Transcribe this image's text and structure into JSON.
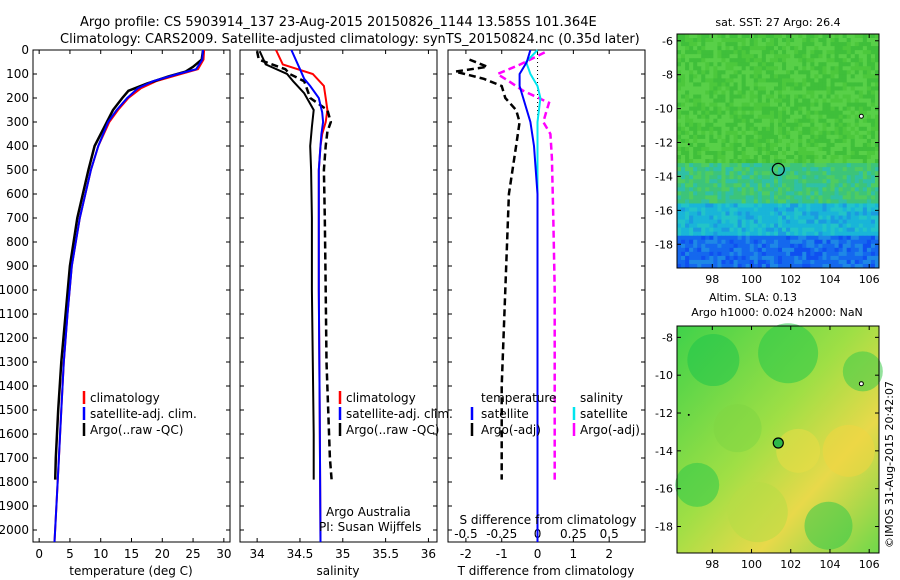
{
  "header": {
    "line1": "Argo profile: CS 5903914_137 23-Aug-2015 20150826_1144 13.585S 101.364E",
    "line2": "Climatology: CARS2009. Satellite-adjusted climatology: synTS_20150824.nc (0.35d later)"
  },
  "colors": {
    "climatology": "#ff0000",
    "satellite": "#0000ff",
    "argo": "#000000",
    "cyan": "#00e5ee",
    "magenta": "#ff00ff"
  },
  "chart_data": [
    {
      "type": "line",
      "id": "temperature",
      "xlabel": "temperature (deg C)",
      "xlim": [
        -1,
        31
      ],
      "xticks": [
        0,
        5,
        10,
        15,
        20,
        25,
        30
      ],
      "ylim": [
        0,
        2050
      ],
      "yticks": [
        0,
        100,
        200,
        300,
        400,
        500,
        600,
        700,
        800,
        900,
        1000,
        1100,
        1200,
        1300,
        1400,
        1500,
        1600,
        1700,
        1800,
        1900,
        2000
      ],
      "legend": [
        "climatology",
        "satellite-adj. clim.",
        "Argo(..raw -QC)"
      ],
      "series": [
        {
          "name": "climatology",
          "depth": [
            0,
            40,
            80,
            100,
            130,
            160,
            200,
            250,
            300,
            400,
            500,
            700,
            900,
            1100,
            1300,
            1500,
            1700,
            1900,
            2050
          ],
          "values": [
            26.8,
            26.7,
            25.8,
            23,
            19,
            16.5,
            14.5,
            12.8,
            11.4,
            9.6,
            8.4,
            6.6,
            5.3,
            4.6,
            4,
            3.6,
            3.2,
            2.8,
            2.5
          ]
        },
        {
          "name": "satellite-adj. clim.",
          "depth": [
            0,
            40,
            80,
            100,
            130,
            160,
            200,
            250,
            300,
            400,
            500,
            700,
            900,
            1100,
            1300,
            1500,
            1700,
            1900,
            2050
          ],
          "values": [
            26.6,
            26.5,
            25.5,
            22.5,
            18.5,
            16,
            14.3,
            12.6,
            11.2,
            9.6,
            8.4,
            6.6,
            5.3,
            4.6,
            4,
            3.6,
            3.2,
            2.8,
            2.5
          ]
        },
        {
          "name": "Argo(..raw -QC)",
          "depth": [
            5,
            40,
            70,
            90,
            110,
            140,
            170,
            200,
            250,
            300,
            400,
            500,
            700,
            900,
            1100,
            1300,
            1500,
            1700,
            1790
          ],
          "values": [
            26.6,
            26.4,
            25,
            23.8,
            21,
            17.5,
            14.5,
            13.5,
            12,
            11,
            9,
            8,
            6.2,
            5,
            4.3,
            3.6,
            3.1,
            2.7,
            2.6
          ]
        }
      ]
    },
    {
      "type": "line",
      "id": "salinity",
      "xlabel": "salinity",
      "xlim": [
        33.8,
        36.1
      ],
      "xticks": [
        34,
        34.5,
        35,
        35.5,
        36
      ],
      "xticklabels": [
        "34",
        "34.5",
        "35",
        "35.5",
        "36"
      ],
      "ylim": [
        0,
        2050
      ],
      "legend": [
        "climatology",
        "satellite-adj. clim.",
        "Argo(..raw -QC)"
      ],
      "annotation": [
        "Argo Australia",
        "PI: Susan Wijffels"
      ],
      "series": [
        {
          "name": "climatology",
          "depth": [
            0,
            60,
            100,
            150,
            200,
            250,
            300,
            350,
            400,
            500,
            700,
            1000,
            1500,
            2050
          ],
          "values": [
            34.22,
            34.3,
            34.65,
            34.78,
            34.8,
            34.82,
            34.8,
            34.76,
            34.74,
            34.72,
            34.72,
            34.72,
            34.73,
            34.74
          ]
        },
        {
          "name": "satellite-adj. clim.",
          "depth": [
            0,
            80,
            120,
            150,
            200,
            260,
            300,
            350,
            400,
            500,
            700,
            1000,
            1500,
            2050
          ],
          "values": [
            34.4,
            34.5,
            34.55,
            34.62,
            34.72,
            34.76,
            34.77,
            34.75,
            34.74,
            34.72,
            34.72,
            34.72,
            34.73,
            34.74
          ]
        },
        {
          "name": "Argo(..raw -QC)",
          "depth": [
            5,
            40,
            80,
            100,
            130,
            200,
            250,
            300,
            340,
            400,
            500,
            700,
            1000,
            1300,
            1500,
            1700,
            1790
          ],
          "values": [
            34.0,
            34.02,
            34.33,
            34.38,
            34.55,
            34.62,
            34.82,
            34.86,
            34.82,
            34.8,
            34.78,
            34.79,
            34.8,
            34.81,
            34.83,
            34.85,
            34.87
          ]
        },
        {
          "name": "Argo(..raw -QC) 2",
          "depth": [
            5,
            60,
            100,
            130,
            180,
            250,
            320,
            400,
            500,
            700,
            1000,
            1300,
            1600,
            1790
          ],
          "values": [
            34.03,
            34.1,
            34.35,
            34.42,
            34.55,
            34.66,
            34.64,
            34.62,
            34.63,
            34.64,
            34.64,
            34.65,
            34.66,
            34.66
          ]
        }
      ]
    },
    {
      "type": "line",
      "id": "difference",
      "xlabel": "T difference from climatology",
      "xlim": [
        -2.5,
        3
      ],
      "xticks": [
        -2,
        -1,
        0,
        1,
        2
      ],
      "toplabel": "S difference from climatology",
      "topticks": [
        -0.5,
        -0.25,
        0,
        0.25,
        0.5
      ],
      "topticklabels": [
        "-0.5",
        "-0.25",
        "0",
        "0.25",
        "0.5"
      ],
      "ylim": [
        0,
        2050
      ],
      "legend_temperature": [
        "temperature",
        "satellite",
        "Argo(-adj)"
      ],
      "legend_salinity": [
        "salinity",
        "satellite",
        "Argo(-adj)"
      ],
      "series": [
        {
          "name": "T satellite",
          "depth": [
            0,
            50,
            100,
            150,
            200,
            300,
            400,
            600,
            1000,
            1500,
            2050
          ],
          "values": [
            -0.2,
            -0.3,
            -0.5,
            -0.5,
            -0.4,
            -0.2,
            -0.1,
            0,
            0,
            0,
            0
          ]
        },
        {
          "name": "T Argo(-adj)",
          "depth": [
            40,
            70,
            90,
            120,
            150,
            200,
            250,
            300,
            400,
            600,
            1000,
            1400,
            1790
          ],
          "values": [
            -1.9,
            -1.4,
            -2.3,
            -1.5,
            -1.0,
            -0.9,
            -0.6,
            -0.5,
            -0.6,
            -0.8,
            -0.9,
            -1.0,
            -1.0
          ]
        },
        {
          "name": "S satellite",
          "depth": [
            0,
            50,
            100,
            150,
            200,
            300,
            400,
            600,
            1000,
            1500,
            2050
          ],
          "values": [
            0,
            -0.08,
            -0.05,
            0,
            0.02,
            0,
            0,
            0,
            0,
            0,
            0
          ]
        },
        {
          "name": "S Argo(-adj)",
          "depth": [
            10,
            60,
            100,
            130,
            170,
            220,
            260,
            300,
            350,
            450,
            700,
            1000,
            1400,
            1790
          ],
          "values": [
            0.05,
            -0.12,
            -0.28,
            -0.2,
            -0.1,
            0.08,
            0.06,
            0.04,
            0.09,
            0.1,
            0.11,
            0.12,
            0.12,
            0.12
          ]
        }
      ]
    },
    {
      "type": "heatmap",
      "id": "sst-map",
      "title": "sat. SST: 27 Argo: 26.4",
      "xlim": [
        96.2,
        106.5
      ],
      "ylim": [
        -19.4,
        -5.6
      ],
      "xticks": [
        98,
        100,
        102,
        104,
        106
      ],
      "yticks": [
        -6,
        -8,
        -10,
        -12,
        -14,
        -16,
        -18
      ],
      "float_position": [
        101.364,
        -13.585
      ]
    },
    {
      "type": "heatmap",
      "id": "sla-map",
      "title_line1": "Altim. SLA: 0.13",
      "title_line2": "Argo h1000: 0.024 h2000: NaN",
      "xlim": [
        96.2,
        106.5
      ],
      "ylim": [
        -19.4,
        -7.4
      ],
      "xticks": [
        98,
        100,
        102,
        104,
        106
      ],
      "yticks": [
        -8,
        -10,
        -12,
        -14,
        -16,
        -18
      ],
      "float_position": [
        101.364,
        -13.585
      ]
    }
  ],
  "stamp": "©IMOS 31-Aug-2015 20:42:07"
}
